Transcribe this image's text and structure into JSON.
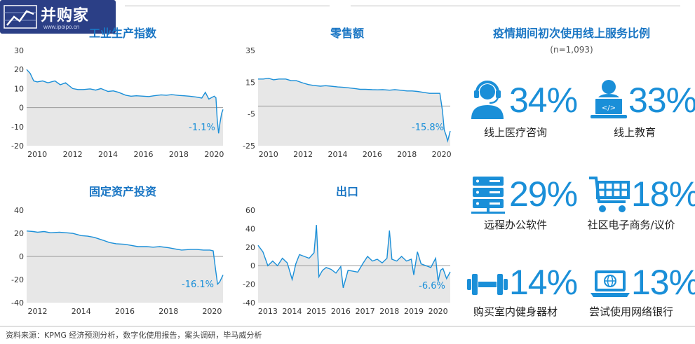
{
  "logo": {
    "name": "并购家",
    "url": "www.ipoipo.cn"
  },
  "chart_data": [
    {
      "id": "chart1",
      "type": "line",
      "title": "工业生产指数",
      "ylim": [
        -20,
        30
      ],
      "yticks": [
        30,
        20,
        10,
        0,
        -10,
        -20
      ],
      "xlim": [
        2009.4,
        2020.5
      ],
      "xticks": [
        2010,
        2012,
        2014,
        2016,
        2018,
        2020
      ],
      "annotation": "-1.1%",
      "series": [
        {
          "x": [
            2009.4,
            2009.6,
            2009.8,
            2010.0,
            2010.3,
            2010.6,
            2011.0,
            2011.3,
            2011.6,
            2012.0,
            2012.3,
            2012.6,
            2013.0,
            2013.3,
            2013.6,
            2014.0,
            2014.3,
            2014.6,
            2015.0,
            2015.3,
            2015.6,
            2016.0,
            2016.3,
            2016.6,
            2017.0,
            2017.3,
            2017.6,
            2018.0,
            2018.3,
            2018.6,
            2019.0,
            2019.3,
            2019.5,
            2019.7,
            2020.0,
            2020.1,
            2020.17,
            2020.25,
            2020.33,
            2020.42,
            2020.5
          ],
          "y": [
            20,
            18,
            14,
            13.5,
            14,
            13,
            14,
            12,
            13,
            10,
            9.5,
            9.5,
            9.8,
            9.2,
            10,
            8.5,
            8.8,
            8,
            6.5,
            6,
            6.2,
            6,
            5.8,
            6.2,
            6.7,
            6.5,
            6.8,
            6.4,
            6.2,
            6,
            5.5,
            5,
            8,
            4.5,
            6,
            5.2,
            -6,
            -13.5,
            -8,
            -3,
            -1
          ]
        }
      ]
    },
    {
      "id": "chart2",
      "type": "line",
      "title": "零售额",
      "ylim": [
        -25,
        35
      ],
      "yticks": [
        35,
        15,
        -5,
        -25
      ],
      "zero_line": true,
      "xlim": [
        2009.4,
        2020.5
      ],
      "xticks": [
        2010,
        2012,
        2014,
        2016,
        2018,
        2020
      ],
      "annotation": "-15.8%",
      "series": [
        {
          "x": [
            2009.4,
            2009.7,
            2010.0,
            2010.3,
            2010.6,
            2011.0,
            2011.3,
            2011.6,
            2012.0,
            2012.3,
            2012.6,
            2013.0,
            2013.3,
            2013.6,
            2014.0,
            2014.3,
            2014.6,
            2015.0,
            2015.3,
            2015.6,
            2016.0,
            2016.3,
            2016.6,
            2017.0,
            2017.3,
            2017.6,
            2018.0,
            2018.3,
            2018.6,
            2019.0,
            2019.3,
            2019.6,
            2019.9,
            2020.05,
            2020.15,
            2020.25,
            2020.35,
            2020.5
          ],
          "y": [
            17,
            17,
            17.5,
            16.5,
            17,
            17,
            16,
            16,
            14.5,
            13.5,
            13,
            12.5,
            12.8,
            12.5,
            12,
            11.8,
            11.5,
            11,
            10.5,
            10.5,
            10.3,
            10.2,
            10.3,
            10,
            10.3,
            10,
            9.5,
            9.5,
            9.2,
            8.5,
            8,
            8,
            8,
            -3,
            -15,
            -18,
            -22,
            -15.8
          ]
        }
      ]
    },
    {
      "id": "chart3",
      "type": "line",
      "title": "固定资产投资",
      "ylim": [
        -40,
        40
      ],
      "yticks": [
        40,
        20,
        0,
        -20,
        -40
      ],
      "xlim": [
        2011.5,
        2020.5
      ],
      "xticks": [
        2012,
        2014,
        2016,
        2018,
        2020
      ],
      "annotation": "-16.1%",
      "series": [
        {
          "x": [
            2011.5,
            2011.8,
            2012.0,
            2012.3,
            2012.6,
            2013.0,
            2013.3,
            2013.6,
            2014.0,
            2014.3,
            2014.6,
            2015.0,
            2015.3,
            2015.6,
            2016.0,
            2016.3,
            2016.6,
            2017.0,
            2017.3,
            2017.6,
            2018.0,
            2018.3,
            2018.6,
            2019.0,
            2019.3,
            2019.6,
            2019.9,
            2020.05,
            2020.15,
            2020.25,
            2020.35,
            2020.5
          ],
          "y": [
            22,
            21.5,
            21,
            21.5,
            20.5,
            21,
            20.5,
            20,
            18,
            17.5,
            16.5,
            14,
            12,
            11,
            10.5,
            9.5,
            8.5,
            8.5,
            8,
            8.5,
            7.5,
            6.5,
            5.5,
            6,
            6,
            5.5,
            5.5,
            4.8,
            -10,
            -24,
            -22,
            -16
          ]
        }
      ]
    },
    {
      "id": "chart4",
      "type": "line",
      "title": "出口",
      "ylim": [
        -40,
        60
      ],
      "yticks": [
        60,
        40,
        20,
        0,
        -20,
        -40
      ],
      "xlim": [
        2012.6,
        2020.5
      ],
      "xticks": [
        2013,
        2014,
        2015,
        2016,
        2017,
        2018,
        2019,
        2020
      ],
      "annotation": "-6.6%",
      "series": [
        {
          "x": [
            2012.6,
            2012.8,
            2013.0,
            2013.2,
            2013.4,
            2013.6,
            2013.8,
            2014.0,
            2014.15,
            2014.3,
            2014.5,
            2014.7,
            2014.9,
            2015.0,
            2015.1,
            2015.25,
            2015.4,
            2015.6,
            2015.8,
            2016.0,
            2016.1,
            2016.3,
            2016.5,
            2016.7,
            2016.9,
            2017.1,
            2017.3,
            2017.5,
            2017.7,
            2017.9,
            2018.0,
            2018.1,
            2018.3,
            2018.5,
            2018.7,
            2018.9,
            2019.0,
            2019.15,
            2019.3,
            2019.5,
            2019.7,
            2019.9,
            2020.0,
            2020.1,
            2020.2,
            2020.35,
            2020.5
          ],
          "y": [
            22,
            15,
            0,
            5,
            0,
            8,
            3,
            -15,
            2,
            12,
            10,
            8,
            14,
            44,
            -12,
            -5,
            -2,
            -4,
            -8,
            -1,
            -24,
            -5,
            -6,
            -7,
            2,
            10,
            5,
            7,
            3,
            8,
            38,
            7,
            5,
            10,
            5,
            7,
            -10,
            15,
            2,
            0,
            -2,
            8,
            -17,
            -5,
            -3,
            -14,
            -6.6
          ]
        }
      ]
    }
  ],
  "survey": {
    "title": "疫情期间初次使用线上服务比例",
    "subtitle": "(n=1,093)",
    "items": [
      {
        "pct": "34%",
        "label": "线上医疗咨询",
        "icon": "headset-person-icon"
      },
      {
        "pct": "33%",
        "label": "线上教育",
        "icon": "laptop-person-icon"
      },
      {
        "pct": "29%",
        "label": "远程办公软件",
        "icon": "server-rack-icon"
      },
      {
        "pct": "18%",
        "label": "社区电子商务/议价",
        "icon": "shopping-cart-icon"
      },
      {
        "pct": "14%",
        "label": "购买室内健身器材",
        "icon": "dumbbell-icon"
      },
      {
        "pct": "13%",
        "label": "尝试使用网络银行",
        "icon": "laptop-globe-icon"
      }
    ]
  },
  "source": "资料来源：KPMG 经济预测分析，数字化使用报告，案头调研，毕马威分析",
  "colors": {
    "accent": "#1a8fd8",
    "title": "#1a76c4",
    "fill": "#e7e7e7",
    "logo_bg": "#2b3f86"
  }
}
